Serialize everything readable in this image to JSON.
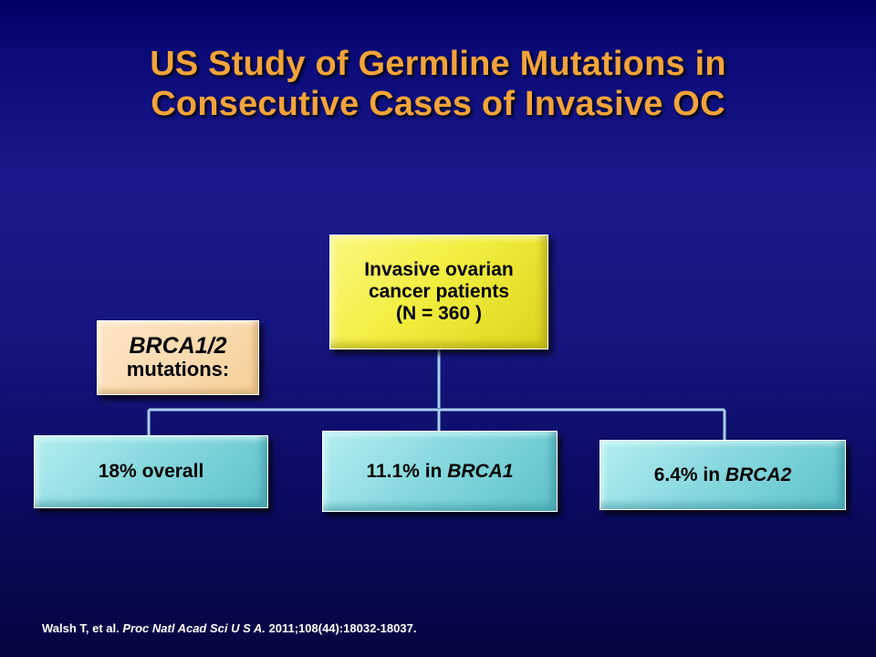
{
  "slide": {
    "title_line1": "US Study of Germline Mutations in",
    "title_line2": "Consecutive Cases of Invasive OC"
  },
  "diagram": {
    "root": {
      "line1": "Invasive ovarian",
      "line2": "cancer patients",
      "line3": "(N = 360 )"
    },
    "mutation_label": {
      "title": "BRCA1/2",
      "subtitle": "mutations:"
    },
    "children": [
      {
        "prefix": "18% overall",
        "gene": ""
      },
      {
        "prefix": "11.1% in ",
        "gene": "BRCA1"
      },
      {
        "prefix": "6.4% in ",
        "gene": "BRCA2"
      }
    ]
  },
  "citation": {
    "authors": "Walsh T, et al. ",
    "journal": "Proc Natl Acad Sci U S A.",
    "details": " 2011;108(44):18032-18037."
  },
  "colors": {
    "title": "#f2a33a",
    "root_box": "#f2ee40",
    "mutation_box": "#f6cf9a",
    "leaf_box": "#88d9df",
    "connector": "#a8d0f0"
  }
}
